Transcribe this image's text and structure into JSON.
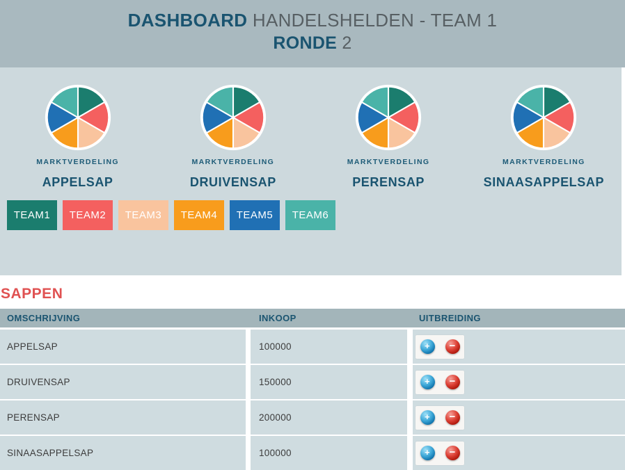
{
  "header": {
    "title_primary": "DASHBOARD",
    "title_secondary": "HANDELSHELDEN - TEAM 1",
    "subtitle_primary": "RONDE",
    "subtitle_secondary": "2"
  },
  "palette": {
    "header_bg": "#a9b9bf",
    "panel_bg": "#cdd9dd",
    "navy": "#1a5470",
    "text_gray": "#575f63",
    "section_red": "#e05252",
    "table_header_bg": "#a3b5ba",
    "row_bg": "#cfdce0",
    "label_navy": "#1d5b77"
  },
  "teams": [
    {
      "label": "TEAM1",
      "color": "#1b7d6e"
    },
    {
      "label": "TEAM2",
      "color": "#f4605f"
    },
    {
      "label": "TEAM3",
      "color": "#f9c49e"
    },
    {
      "label": "TEAM4",
      "color": "#f89c1c"
    },
    {
      "label": "TEAM5",
      "color": "#2070b4"
    },
    {
      "label": "TEAM6",
      "color": "#4ab3a8"
    }
  ],
  "charts": [
    {
      "label": "MARKTVERDELING",
      "title": "APPELSAP"
    },
    {
      "label": "MARKTVERDELING",
      "title": "DRUIVENSAP"
    },
    {
      "label": "MARKTVERDELING",
      "title": "PERENSAP"
    },
    {
      "label": "MARKTVERDELING",
      "title": "SINAASAPPELSAP"
    }
  ],
  "chart_data": [
    {
      "type": "pie",
      "title": "APPELSAP",
      "subtitle": "MARKTVERDELING",
      "categories": [
        "TEAM1",
        "TEAM2",
        "TEAM3",
        "TEAM4",
        "TEAM5",
        "TEAM6"
      ],
      "values": [
        16.67,
        16.67,
        16.67,
        16.67,
        16.67,
        16.67
      ],
      "colors": [
        "#1b7d6e",
        "#f4605f",
        "#f9c49e",
        "#f89c1c",
        "#2070b4",
        "#4ab3a8"
      ],
      "legend_position": "none"
    },
    {
      "type": "pie",
      "title": "DRUIVENSAP",
      "subtitle": "MARKTVERDELING",
      "categories": [
        "TEAM1",
        "TEAM2",
        "TEAM3",
        "TEAM4",
        "TEAM5",
        "TEAM6"
      ],
      "values": [
        16.67,
        16.67,
        16.67,
        16.67,
        16.67,
        16.67
      ],
      "colors": [
        "#1b7d6e",
        "#f4605f",
        "#f9c49e",
        "#f89c1c",
        "#2070b4",
        "#4ab3a8"
      ],
      "legend_position": "none"
    },
    {
      "type": "pie",
      "title": "PERENSAP",
      "subtitle": "MARKTVERDELING",
      "categories": [
        "TEAM1",
        "TEAM2",
        "TEAM3",
        "TEAM4",
        "TEAM5",
        "TEAM6"
      ],
      "values": [
        16.67,
        16.67,
        16.67,
        16.67,
        16.67,
        16.67
      ],
      "colors": [
        "#1b7d6e",
        "#f4605f",
        "#f9c49e",
        "#f89c1c",
        "#2070b4",
        "#4ab3a8"
      ],
      "legend_position": "none"
    },
    {
      "type": "pie",
      "title": "SINAASAPPELSAP",
      "subtitle": "MARKTVERDELING",
      "categories": [
        "TEAM1",
        "TEAM2",
        "TEAM3",
        "TEAM4",
        "TEAM5",
        "TEAM6"
      ],
      "values": [
        16.67,
        16.67,
        16.67,
        16.67,
        16.67,
        16.67
      ],
      "colors": [
        "#1b7d6e",
        "#f4605f",
        "#f9c49e",
        "#f89c1c",
        "#2070b4",
        "#4ab3a8"
      ],
      "legend_position": "none"
    }
  ],
  "section": {
    "title": "SAPPEN"
  },
  "table": {
    "headers": [
      "OMSCHRIJVING",
      "INKOOP",
      "UITBREIDING"
    ],
    "rows": [
      {
        "name": "APPELSAP",
        "inkoop": "100000"
      },
      {
        "name": "DRUIVENSAP",
        "inkoop": "150000"
      },
      {
        "name": "PERENSAP",
        "inkoop": "200000"
      },
      {
        "name": "SINAASAPPELSAP",
        "inkoop": "100000"
      }
    ]
  },
  "controls": {
    "increase_glyph": "+",
    "decrease_glyph": "−"
  }
}
